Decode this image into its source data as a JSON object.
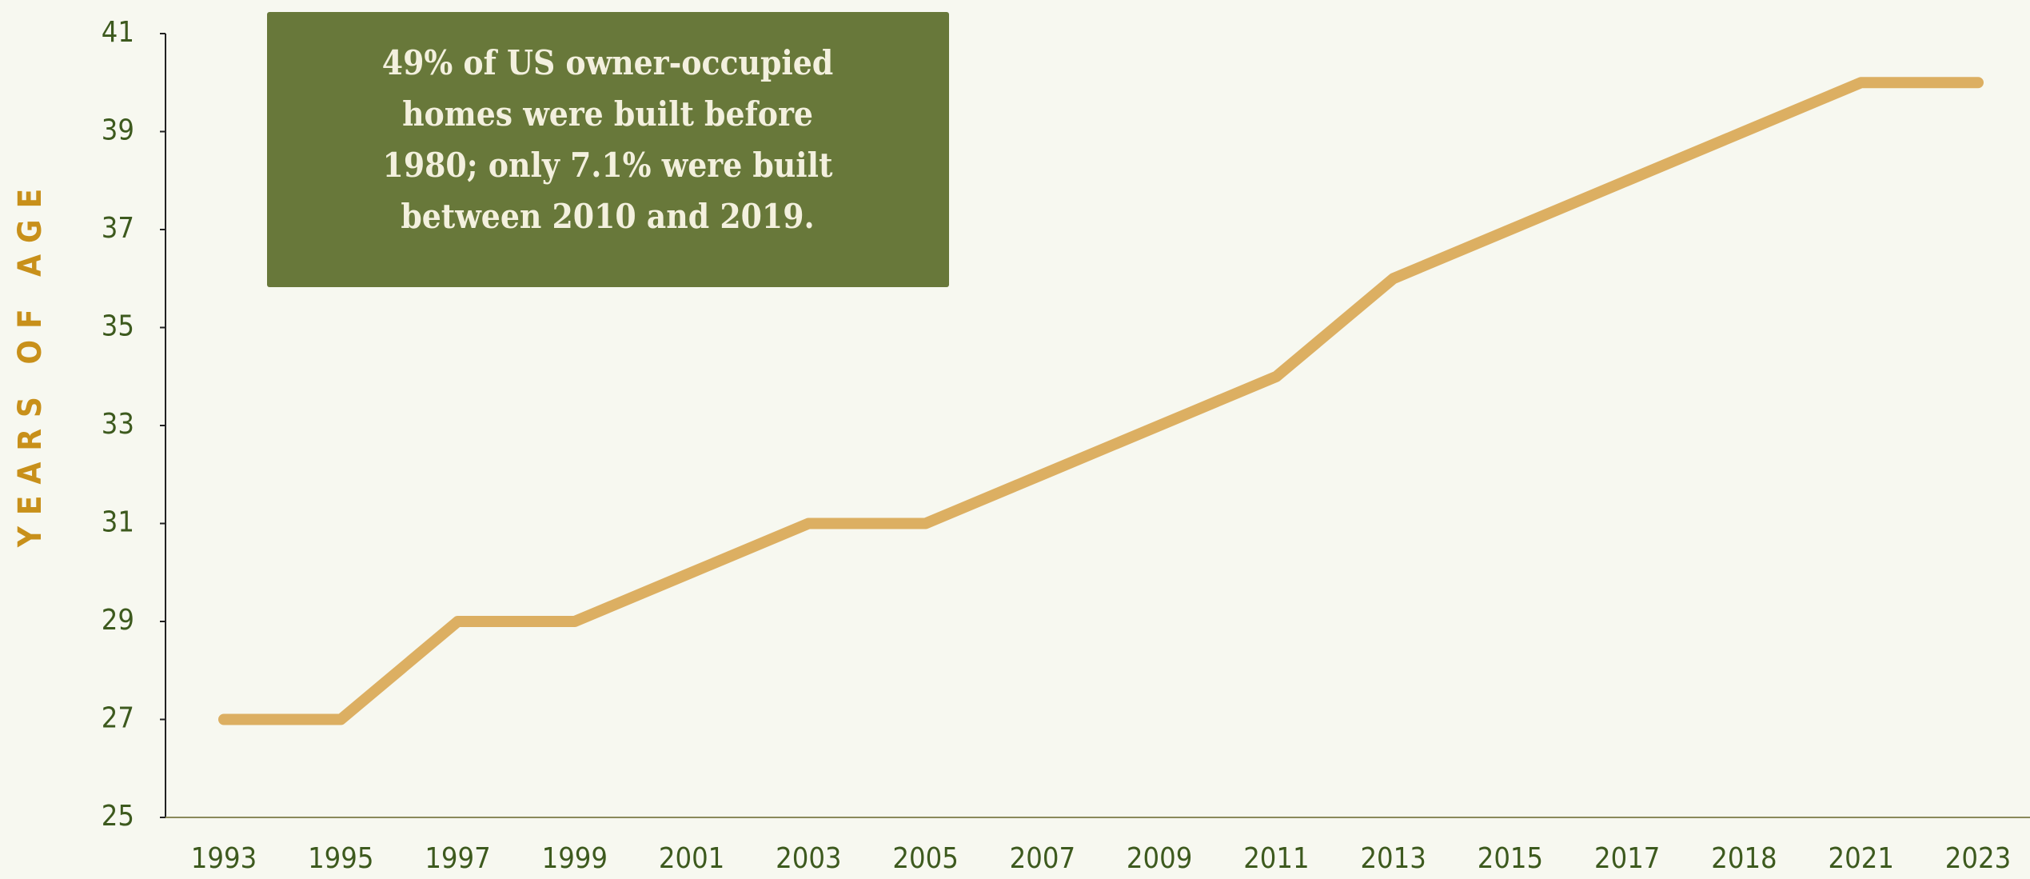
{
  "chart_data": {
    "type": "line",
    "y_axis_label": "YEARS OF AGE",
    "annotation": [
      "49% of US owner-occupied",
      "homes were built before",
      "1980; only 7.1% were built",
      "between 2010 and 2019."
    ],
    "categories": [
      "1993",
      "1995",
      "1997",
      "1999",
      "2001",
      "2003",
      "2005",
      "2007",
      "2009",
      "2011",
      "2013",
      "2015",
      "2017",
      "2018",
      "2021",
      "2023"
    ],
    "values": [
      27,
      27,
      29,
      29,
      30,
      31,
      31,
      32,
      33,
      34,
      36,
      37,
      38,
      39,
      40,
      40
    ],
    "color": "#dcaf62",
    "ylim": [
      25,
      41
    ],
    "yticks": [
      25,
      27,
      29,
      31,
      33,
      35,
      37,
      39,
      41
    ],
    "grid": false
  }
}
